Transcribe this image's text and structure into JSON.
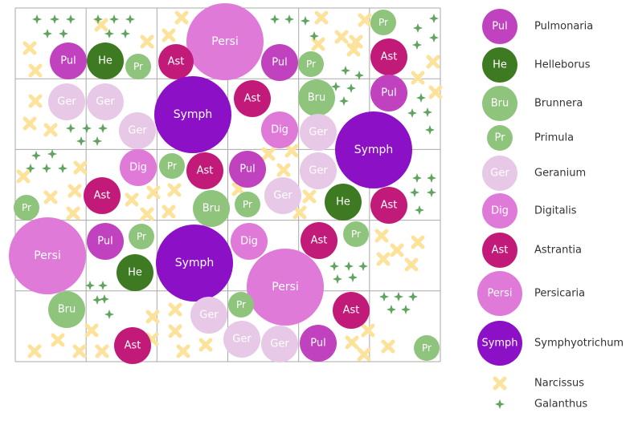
{
  "colors": {
    "grid": "#aaaaaa",
    "narcissus": "#fde29b",
    "galanthus": "#5fa35f",
    "background": "#ffffff"
  },
  "species": {
    "Pul": {
      "name": "Pulmonaria",
      "color": "#c042bf",
      "label_color": "#ffffff"
    },
    "He": {
      "name": "Helleborus",
      "color": "#3d7a22",
      "label_color": "#ffffff"
    },
    "Bru": {
      "name": "Brunnera",
      "color": "#8fc47d",
      "label_color": "#ffffff"
    },
    "Pr": {
      "name": "Primula",
      "color": "#8fc47d",
      "label_color": "#ffffff"
    },
    "Ger": {
      "name": "Geranium",
      "color": "#e7c8e6",
      "label_color": "#555555"
    },
    "Dig": {
      "name": "Digitalis",
      "color": "#df7ad9",
      "label_color": "#ffffff"
    },
    "Ast": {
      "name": "Astrantia",
      "color": "#c21a78",
      "label_color": "#ffffff"
    },
    "Persi": {
      "name": "Persicaria",
      "color": "#df7ad9",
      "label_color": "#ffffff"
    },
    "Symph": {
      "name": "Symphyotrichum",
      "color": "#8c10c6",
      "label_color": "#ffffff"
    }
  },
  "legend": [
    {
      "code": "Pul",
      "label": "Pulmonaria"
    },
    {
      "code": "He",
      "label": "Helleborus"
    },
    {
      "code": "Bru",
      "label": "Brunnera"
    },
    {
      "code": "Pr",
      "label": "Primula"
    },
    {
      "code": "Ger",
      "label": "Geranium"
    },
    {
      "code": "Dig",
      "label": "Digitalis"
    },
    {
      "code": "Ast",
      "label": "Astrantia"
    },
    {
      "code": "Persi",
      "label": "Persicaria"
    },
    {
      "code": "Symph",
      "label": "Symphyotrichum"
    },
    {
      "code": "narcissus",
      "label": "Narcissus"
    },
    {
      "code": "galanthus",
      "label": "Galanthus"
    }
  ]
}
